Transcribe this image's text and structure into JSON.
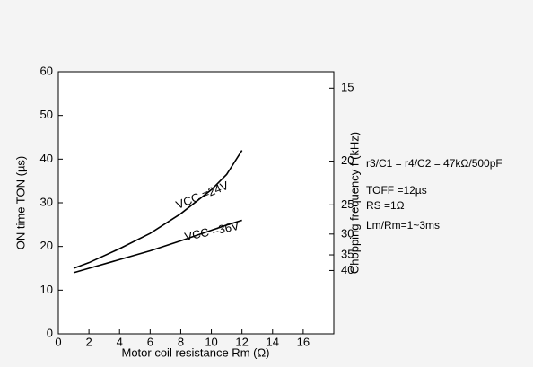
{
  "chart_data": {
    "type": "line",
    "x_label": "Motor coil resistance Rm (Ω)",
    "y_label": "ON time TON (µs)",
    "y2_label": "Chopping frequency f (kHz)",
    "xlim": [
      0,
      18
    ],
    "xticks": [
      0,
      2,
      4,
      6,
      8,
      10,
      12,
      14,
      16
    ],
    "ylim": [
      0,
      60
    ],
    "yticks": [
      0,
      10,
      20,
      30,
      40,
      50,
      60
    ],
    "y2lim": [
      14.2,
      95
    ],
    "y2_scale": "reciprocal",
    "y2ticks": [
      15,
      20,
      25,
      30,
      35,
      40
    ],
    "x": [
      1,
      2,
      4,
      6,
      8,
      10,
      11,
      12
    ],
    "series": [
      {
        "name": "VCC =24V",
        "color": "#000000",
        "values": [
          15,
          16.3,
          19.5,
          23,
          27.5,
          33,
          36.5,
          42
        ]
      },
      {
        "name": "VCC =36V",
        "color": "#000000",
        "values": [
          14,
          15,
          17,
          19,
          21.3,
          23.7,
          24.9,
          26
        ]
      }
    ],
    "annotations": [
      "r3/C1 = r4/C2 = 47kΩ/500pF",
      "TOFF =12µs",
      "RS =1Ω",
      "Lm/Rm=1~3ms"
    ]
  }
}
